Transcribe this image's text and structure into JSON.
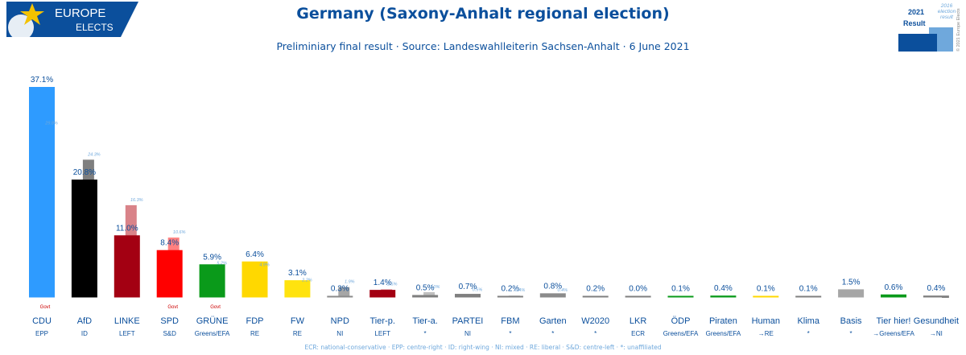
{
  "header": {
    "logo_line1": "EUROPE",
    "logo_line2": "ELECTS",
    "title": "Germany (Saxony-Anhalt regional election)",
    "subtitle": "Preliminiary final result · Source: Landeswahlleiterin Sachsen-Anhalt · 6 June 2021",
    "legend_current_year": "2021",
    "legend_current_label": "Result",
    "legend_previous": "2016 election result",
    "copyright": "© 2021 Europe Elects"
  },
  "footnote": "ECR: national-conservative · EPP: centre-right · ID: right-wing · NI: mixed · RE: liberal · S&D: centre-left · *: unaffiliated",
  "colors": {
    "brand_blue": "#0b4f9c",
    "accent_light_blue": "#6fa8dc",
    "govt_red": "#cc0000",
    "logo_star": "#f3c200"
  },
  "chart_data": {
    "type": "bar",
    "title": "Germany (Saxony-Anhalt regional election)",
    "xlabel": "",
    "ylabel": "",
    "ylim": [
      0,
      37.1
    ],
    "value_unit": "%",
    "series": [
      {
        "name": "2021 Result",
        "values": [
          37.1,
          20.8,
          11.0,
          8.4,
          5.9,
          6.4,
          3.1,
          0.3,
          1.4,
          0.5,
          0.7,
          0.2,
          0.8,
          0.2,
          0.0,
          0.1,
          0.4,
          0.1,
          0.1,
          1.5,
          0.6,
          0.4
        ]
      },
      {
        "name": "2016 election result",
        "values": [
          29.8,
          24.3,
          16.3,
          10.6,
          5.2,
          4.9,
          2.2,
          1.9,
          1.5,
          1.0,
          0.5,
          0.4,
          0.4,
          null,
          null,
          null,
          null,
          null,
          null,
          null,
          null,
          null
        ]
      }
    ],
    "parties": [
      {
        "name": "CDU",
        "group": "EPP",
        "color": "#2e9bff",
        "prev_color": "#9ecdfa",
        "value": "37.1%",
        "prev": "29.8%",
        "govt": "Govt"
      },
      {
        "name": "AfD",
        "group": "ID",
        "color": "#000000",
        "prev_color": "#7f7f7f",
        "value": "20.8%",
        "prev": "24.3%",
        "govt": ""
      },
      {
        "name": "LINKE",
        "group": "LEFT",
        "color": "#a30012",
        "prev_color": "#d98389",
        "value": "11.0%",
        "prev": "16.3%",
        "govt": ""
      },
      {
        "name": "SPD",
        "group": "S&D",
        "color": "#ff0000",
        "prev_color": "#ff8080",
        "value": "8.4%",
        "prev": "10.6%",
        "govt": "Govt"
      },
      {
        "name": "GRÜNE",
        "group": "Greens/EFA",
        "color": "#0a9a1a",
        "prev_color": "#85cc8d",
        "value": "5.9%",
        "prev": "5.2%",
        "govt": "Govt"
      },
      {
        "name": "FDP",
        "group": "RE",
        "color": "#ffd800",
        "prev_color": "#ffec80",
        "value": "6.4%",
        "prev": "4.9%",
        "govt": ""
      },
      {
        "name": "FW",
        "group": "RE",
        "color": "#ffe30f",
        "prev_color": "#fff187",
        "value": "3.1%",
        "prev": "2.2%",
        "govt": ""
      },
      {
        "name": "NPD",
        "group": "NI",
        "color": "#8b8b8b",
        "prev_color": "#a6a6a6",
        "value": "0.3%",
        "prev": "1.9%",
        "govt": ""
      },
      {
        "name": "Tier-p.",
        "group": "LEFT",
        "color": "#a30012",
        "prev_color": "#d98389",
        "value": "1.4%",
        "prev": "1.5%",
        "govt": ""
      },
      {
        "name": "Tier-a.",
        "group": "*",
        "color": "#7f7f7f",
        "prev_color": "#bfbfbf",
        "value": "0.5%",
        "prev": "1.0%",
        "govt": ""
      },
      {
        "name": "PARTEI",
        "group": "NI",
        "color": "#7f7f7f",
        "prev_color": "#bfbfbf",
        "value": "0.7%",
        "prev": "0.5%",
        "govt": ""
      },
      {
        "name": "FBM",
        "group": "*",
        "color": "#7f7f7f",
        "prev_color": "#bfbfbf",
        "value": "0.2%",
        "prev": "0.4%",
        "govt": ""
      },
      {
        "name": "Garten",
        "group": "*",
        "color": "#8b8b8b",
        "prev_color": "#bfbfbf",
        "value": "0.8%",
        "prev": "0.4%",
        "govt": ""
      },
      {
        "name": "W2020",
        "group": "*",
        "color": "#7f7f7f",
        "prev_color": "",
        "value": "0.2%",
        "prev": "",
        "govt": ""
      },
      {
        "name": "LKR",
        "group": "ECR",
        "color": "#7f7f7f",
        "prev_color": "",
        "value": "0.0%",
        "prev": "",
        "govt": ""
      },
      {
        "name": "ÖDP",
        "group": "Greens/EFA",
        "color": "#0a9a1a",
        "prev_color": "",
        "value": "0.1%",
        "prev": "",
        "govt": ""
      },
      {
        "name": "Piraten",
        "group": "Greens/EFA",
        "color": "#0a9a1a",
        "prev_color": "",
        "value": "0.4%",
        "prev": "",
        "govt": ""
      },
      {
        "name": "Human",
        "group": "→RE",
        "color": "#ffd800",
        "prev_color": "",
        "value": "0.1%",
        "prev": "",
        "govt": ""
      },
      {
        "name": "Klima",
        "group": "*",
        "color": "#7f7f7f",
        "prev_color": "",
        "value": "0.1%",
        "prev": "",
        "govt": ""
      },
      {
        "name": "Basis",
        "group": "*",
        "color": "#a6a6a6",
        "prev_color": "",
        "value": "1.5%",
        "prev": "",
        "govt": ""
      },
      {
        "name": "Tier hier!",
        "group": "→Greens/EFA",
        "color": "#0a9a1a",
        "prev_color": "",
        "value": "0.6%",
        "prev": "",
        "govt": ""
      },
      {
        "name": "Gesundheit",
        "group": "→NI",
        "color": "#7f7f7f",
        "prev_color": "",
        "value": "0.4%",
        "prev": "",
        "govt": ""
      }
    ],
    "grid": false,
    "legend": "top-right"
  }
}
